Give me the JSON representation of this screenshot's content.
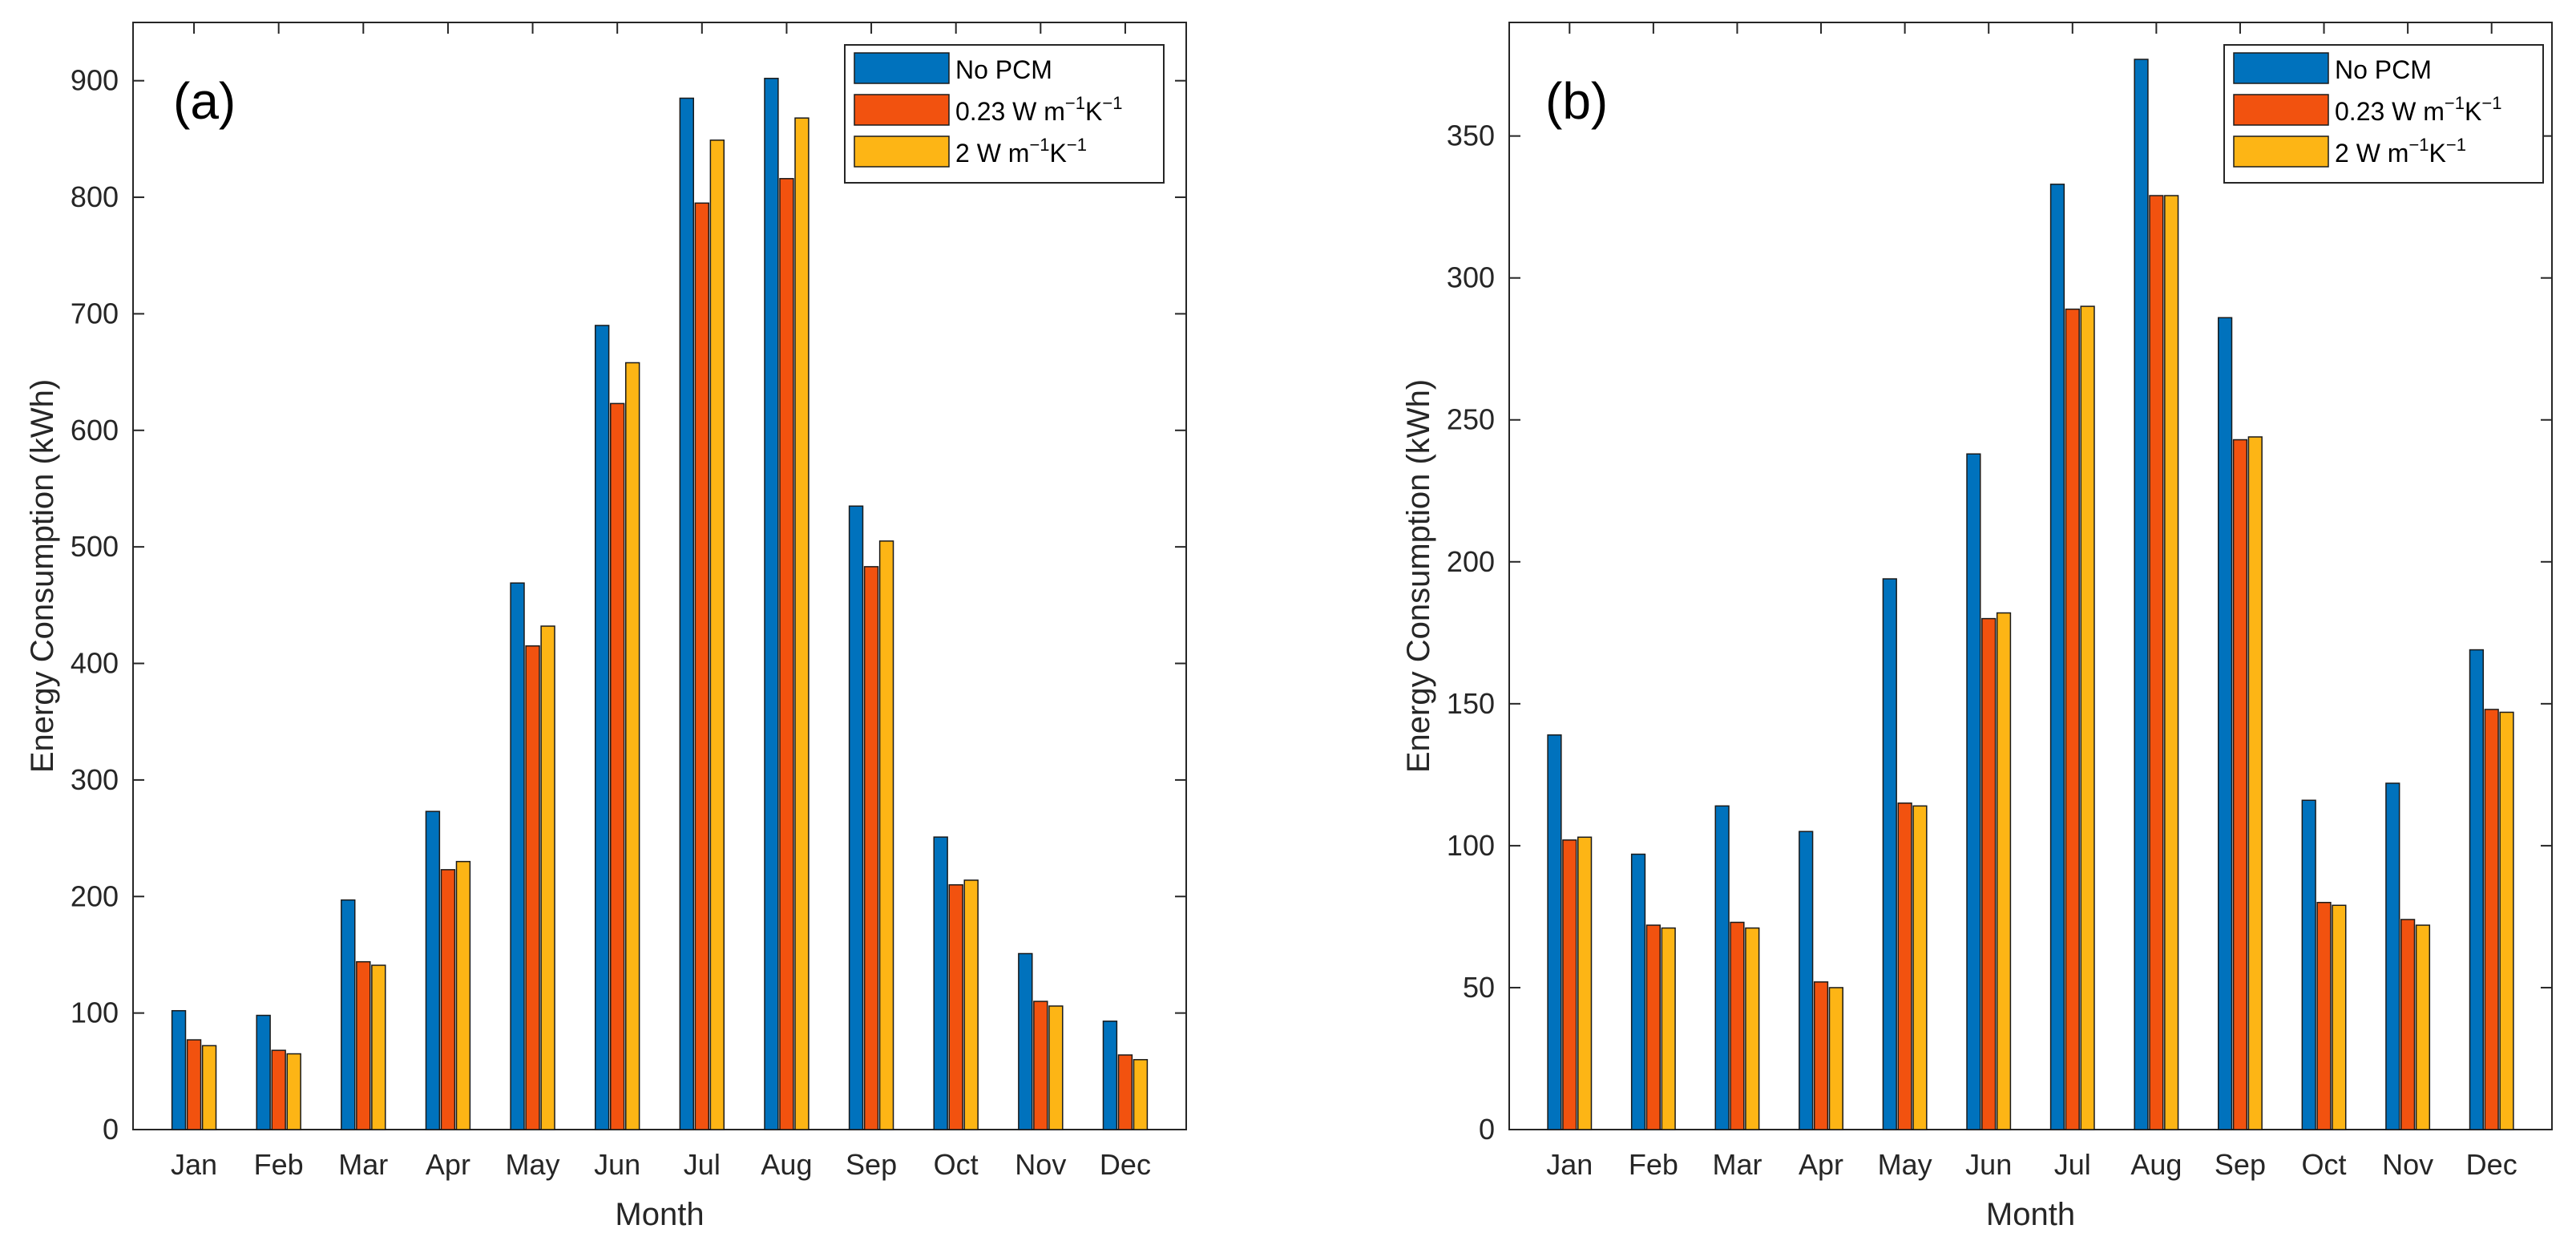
{
  "colors": {
    "no_pcm": "#0072BD",
    "k023": "#F2520F",
    "k2": "#FDB515"
  },
  "chart_data": [
    {
      "type": "bar",
      "panel_label": "(a)",
      "xlabel": "Month",
      "ylabel": "Energy Consumption (kWh)",
      "ylim": [
        0,
        950
      ],
      "yticks": [
        0,
        100,
        200,
        300,
        400,
        500,
        600,
        700,
        800,
        900
      ],
      "grid": false,
      "legend_position": "top-right",
      "categories": [
        "Jan",
        "Feb",
        "Mar",
        "Apr",
        "May",
        "Jun",
        "Jul",
        "Aug",
        "Sep",
        "Oct",
        "Nov",
        "Dec"
      ],
      "series": [
        {
          "name": "No PCM",
          "color_key": "no_pcm",
          "values": [
            102,
            98,
            197,
            273,
            469,
            690,
            885,
            902,
            535,
            251,
            151,
            93
          ]
        },
        {
          "name_base": "0.23 W m",
          "name_exp1": "−1",
          "name_mid": "K",
          "name_exp2": "−1",
          "color_key": "k023",
          "values": [
            77,
            68,
            144,
            223,
            415,
            623,
            795,
            816,
            483,
            210,
            110,
            64
          ]
        },
        {
          "name_base": "2 W m",
          "name_exp1": "−1",
          "name_mid": "K",
          "name_exp2": "−1",
          "color_key": "k2",
          "values": [
            72,
            65,
            141,
            230,
            432,
            658,
            849,
            868,
            505,
            214,
            106,
            60
          ]
        }
      ]
    },
    {
      "type": "bar",
      "panel_label": "(b)",
      "xlabel": "Month",
      "ylabel": "Energy Consumption (kWh)",
      "ylim": [
        0,
        390
      ],
      "yticks": [
        0,
        50,
        100,
        150,
        200,
        250,
        300,
        350
      ],
      "grid": false,
      "legend_position": "top-right",
      "categories": [
        "Jan",
        "Feb",
        "Mar",
        "Apr",
        "May",
        "Jun",
        "Jul",
        "Aug",
        "Sep",
        "Oct",
        "Nov",
        "Dec"
      ],
      "series": [
        {
          "name": "No PCM",
          "color_key": "no_pcm",
          "values": [
            139,
            97,
            114,
            105,
            194,
            238,
            333,
            377,
            286,
            116,
            122,
            169
          ]
        },
        {
          "name_base": "0.23 W m",
          "name_exp1": "−1",
          "name_mid": "K",
          "name_exp2": "−1",
          "color_key": "k023",
          "values": [
            102,
            72,
            73,
            52,
            115,
            180,
            289,
            329,
            243,
            80,
            74,
            148
          ]
        },
        {
          "name_base": "2 W m",
          "name_exp1": "−1",
          "name_mid": "K",
          "name_exp2": "−1",
          "color_key": "k2",
          "values": [
            103,
            71,
            71,
            50,
            114,
            182,
            290,
            329,
            244,
            79,
            72,
            147
          ]
        }
      ]
    }
  ]
}
